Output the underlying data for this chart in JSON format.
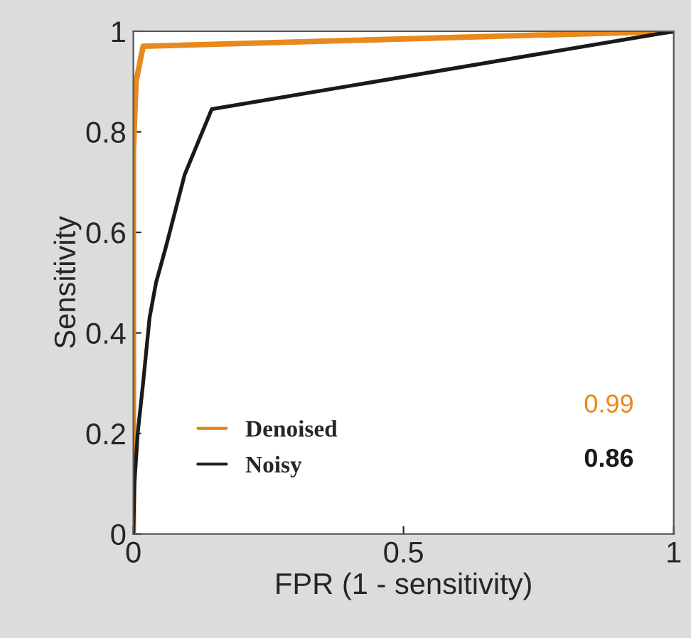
{
  "chart_data": {
    "type": "line",
    "xlabel": "FPR (1 - sensitivity)",
    "ylabel": "Sensitivity",
    "xlim": [
      0,
      1
    ],
    "ylim": [
      0,
      1
    ],
    "xticks": [
      0,
      0.5,
      1
    ],
    "yticks": [
      0,
      0.2,
      0.4,
      0.6,
      0.8,
      1
    ],
    "grid": false,
    "legend": "bottom",
    "marker": "none",
    "line_style": "solid",
    "series": [
      {
        "name": "Denoised",
        "color": "#e8891e",
        "x": [
          0,
          0,
          0.005,
          0.018,
          1
        ],
        "values": [
          0,
          0.76,
          0.9,
          0.97,
          1
        ]
      },
      {
        "name": "Noisy",
        "color": "#1a1a1a",
        "x": [
          0,
          0.002,
          0.008,
          0.018,
          0.03,
          0.042,
          0.06,
          0.095,
          0.145,
          1
        ],
        "values": [
          0,
          0.1,
          0.2,
          0.3,
          0.43,
          0.5,
          0.57,
          0.715,
          0.845,
          1
        ]
      }
    ],
    "annotations": [
      "0.99",
      "0.86"
    ]
  }
}
